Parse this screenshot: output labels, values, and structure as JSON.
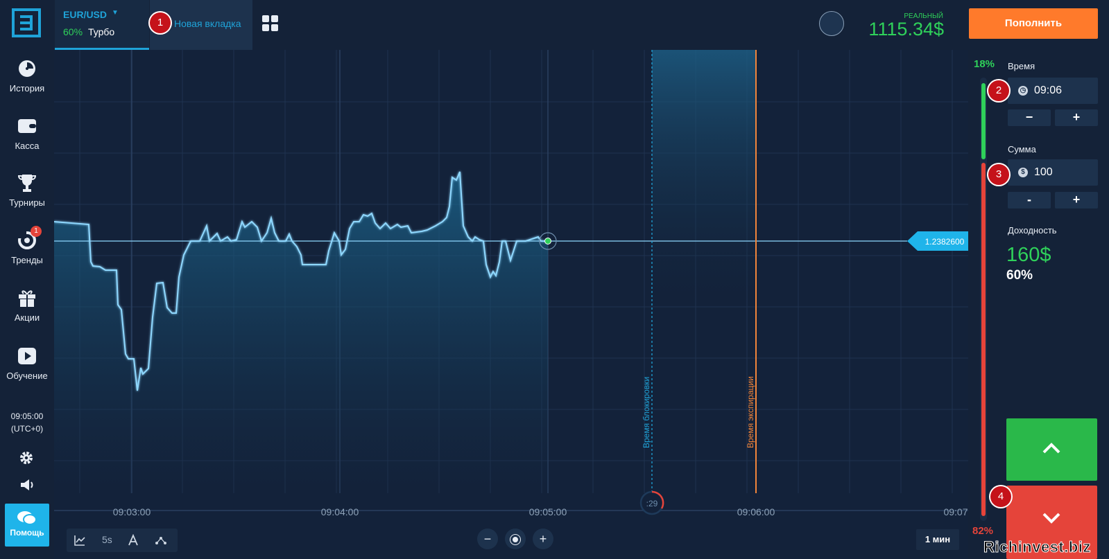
{
  "header": {
    "asset": {
      "name": "EUR/USD",
      "payout_pct": "60%",
      "type": "Турбо"
    },
    "new_tab_label": "Новая вкладка",
    "account_type": "РЕАЛЬНЫЙ",
    "balance": "1115.34$",
    "deposit_label": "Пополнить"
  },
  "sidebar": {
    "items": [
      {
        "label": "История",
        "icon": "clock-icon"
      },
      {
        "label": "Касса",
        "icon": "wallet-icon"
      },
      {
        "label": "Турниры",
        "icon": "trophy-icon"
      },
      {
        "label": "Тренды",
        "icon": "trends-icon",
        "badge": "1"
      },
      {
        "label": "Акции",
        "icon": "gift-icon"
      },
      {
        "label": "Обучение",
        "icon": "play-icon"
      }
    ],
    "time": "09:05:00",
    "timezone": "(UTC+0)",
    "help_label": "Помощь"
  },
  "chart": {
    "current_price": "1.2382600",
    "x_labels": [
      "09:03:00",
      "09:04:00",
      "09:05:00",
      "09:06:00",
      "09:07"
    ],
    "lock_label": "Время блокировки",
    "expiry_label": "Время экспирации",
    "countdown": ":29",
    "toolbar": {
      "interval": "5s"
    },
    "timeframe": "1 мин",
    "colors": {
      "line": "#8fd8ff",
      "lock": "#1fa3d8",
      "expiry": "#f2853a"
    }
  },
  "trade": {
    "time_label": "Время",
    "time_value": "09:06",
    "amount_label": "Сумма",
    "amount_value": "100",
    "minus": "−",
    "plus": "+",
    "minus2": "-",
    "profit_label": "Доходность",
    "profit_value": "160$",
    "profit_pct": "60%",
    "up_pct": "18%",
    "down_pct": "82%",
    "up_share": 0.18,
    "down_share": 0.82
  },
  "markers": [
    "1",
    "2",
    "3",
    "4"
  ],
  "watermark": "Richinvest.biz"
}
